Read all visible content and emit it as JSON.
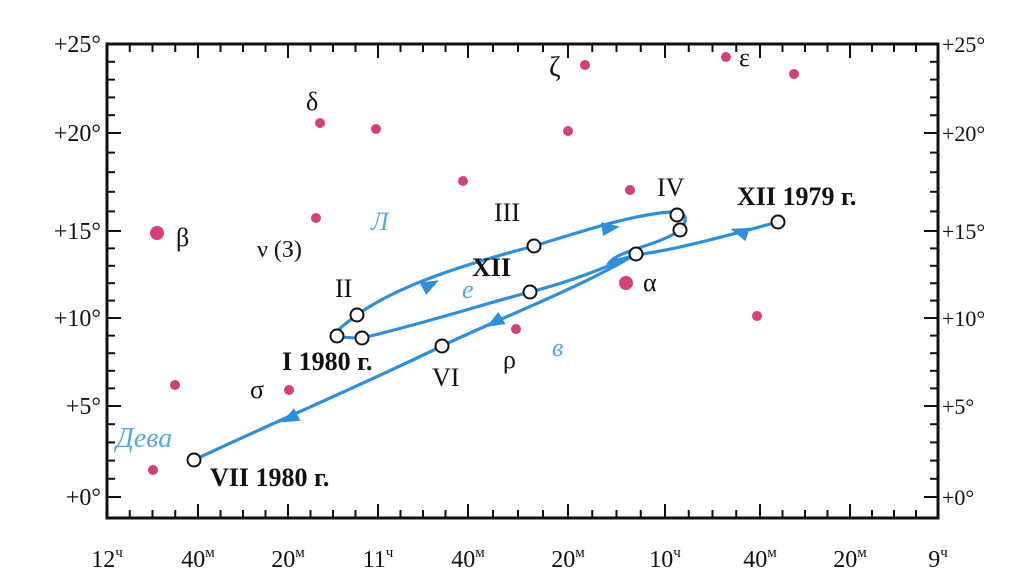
{
  "y_axis_labels": [
    "+0°",
    "+5°",
    "+10°",
    "+15°",
    "+20°",
    "+25°"
  ],
  "x_axis_labels": [
    "12ч",
    "40м",
    "20м",
    "11ч",
    "40м",
    "20м",
    "10ч",
    "40м",
    "20м",
    "9ч"
  ],
  "stars": [
    {
      "label": "β",
      "big": true
    },
    {
      "label": "",
      "big": false
    },
    {
      "label": "",
      "big": false
    },
    {
      "label": "δ",
      "big": false
    },
    {
      "label": "",
      "big": false
    },
    {
      "label": "ν (З)",
      "big": false
    },
    {
      "label": "σ",
      "big": false
    },
    {
      "label": "",
      "big": false
    },
    {
      "label": "ρ",
      "big": false
    },
    {
      "label": "ζ",
      "big": false
    },
    {
      "label": "",
      "big": false
    },
    {
      "label": "",
      "big": false
    },
    {
      "label": "α",
      "big": true
    },
    {
      "label": "ε",
      "big": false
    },
    {
      "label": "",
      "big": false
    },
    {
      "label": "",
      "big": false
    }
  ],
  "path_points": [
    {
      "label": "XII 1979 г."
    },
    {
      "label": ""
    },
    {
      "label": "IV"
    },
    {
      "label": "III"
    },
    {
      "label": "II"
    },
    {
      "label": "I 1980 г."
    },
    {
      "label": ""
    },
    {
      "label": "XII"
    },
    {
      "label": ""
    },
    {
      "label": "VI"
    },
    {
      "label": "VII 1980 г."
    }
  ],
  "constellation_labels": {
    "leo_l": "Л",
    "leo_e": "е",
    "leo_v": "в",
    "virgo": "Дева"
  },
  "colors": {
    "star": "#d4407a",
    "path": "#2f8fd8",
    "plot_bg": "#ffffff",
    "frame": "#111111"
  }
}
